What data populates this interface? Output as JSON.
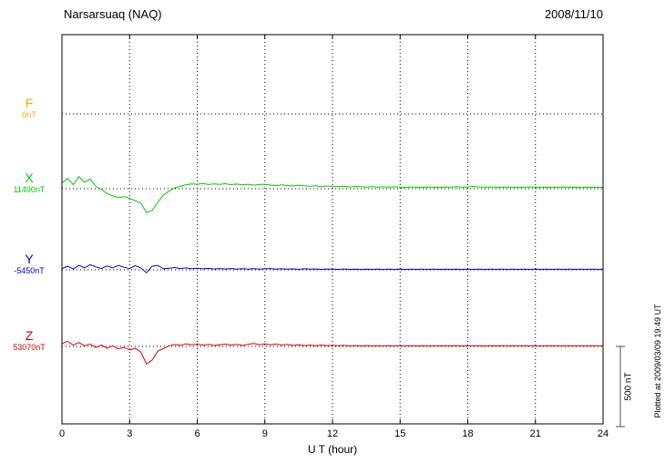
{
  "header": {
    "station_title": "Narsarsuaq (NAQ)",
    "date": "2008/11/10"
  },
  "axes": {
    "x_title": "U T (hour)",
    "x_tick_labels": [
      "0",
      "3",
      "6",
      "9",
      "12",
      "15",
      "18",
      "21",
      "24"
    ],
    "x_tick_step_hours": 3
  },
  "scale_bar": {
    "label": "500 nT",
    "span_nT": 500
  },
  "plotted_note": "Plotted at 2009/03/09 19:49 UT",
  "chart_data": {
    "type": "line",
    "title": "Narsarsuaq (NAQ) magnetogram 2008/11/10",
    "xlabel": "U T (hour)",
    "x_range": [
      0,
      24
    ],
    "x_step_hours": 0.25,
    "grid": "dotted baselines and 3-hour verticals",
    "scale_nT_per_bar": 500,
    "series": [
      {
        "id": "F",
        "label": "F",
        "baseline_label": "0nT",
        "baseline_nT": 0,
        "color": "#FFA500",
        "offsets_nT": []
      },
      {
        "id": "X",
        "label": "X",
        "baseline_label": "11490nT",
        "baseline_nT": 11490,
        "color": "#00CC00",
        "offsets_nT": [
          35,
          65,
          25,
          75,
          40,
          60,
          15,
          -5,
          -30,
          -45,
          -55,
          -50,
          -60,
          -75,
          -90,
          -150,
          -135,
          -85,
          -40,
          -15,
          5,
          15,
          25,
          30,
          28,
          32,
          26,
          30,
          27,
          31,
          25,
          29,
          24,
          28,
          22,
          26,
          28,
          23,
          19,
          24,
          20,
          17,
          22,
          18,
          15,
          19,
          13,
          17,
          15,
          12,
          16,
          11,
          14,
          12,
          10,
          13,
          10,
          12,
          9,
          12,
          10,
          8,
          11,
          9,
          8,
          11,
          9,
          8,
          11,
          9,
          12,
          9,
          11,
          14,
          11,
          9,
          11,
          9,
          8,
          11,
          9,
          8,
          9,
          11,
          9,
          8,
          9,
          8,
          9,
          11,
          8,
          9,
          8,
          9,
          8,
          9,
          8
        ]
      },
      {
        "id": "Y",
        "label": "Y",
        "baseline_label": "-5450nT",
        "baseline_nT": -5450,
        "color": "#0000DD",
        "offsets_nT": [
          8,
          22,
          5,
          28,
          12,
          32,
          18,
          8,
          24,
          12,
          28,
          16,
          8,
          26,
          12,
          -18,
          22,
          28,
          6,
          10,
          14,
          8,
          12,
          6,
          10,
          6,
          9,
          5,
          8,
          5,
          8,
          4,
          7,
          4,
          7,
          4,
          6,
          8,
          4,
          6,
          4,
          6,
          3,
          6,
          4,
          5,
          3,
          5,
          4,
          3,
          5,
          3,
          4,
          3,
          4,
          3,
          4,
          3,
          4,
          3,
          4,
          3,
          4,
          3,
          4,
          3,
          4,
          3,
          4,
          3,
          4,
          3,
          4,
          3,
          4,
          3,
          4,
          3,
          4,
          3,
          4,
          3,
          4,
          3,
          4,
          3,
          4,
          3,
          4,
          3,
          4,
          3,
          4,
          3,
          4,
          3,
          4
        ]
      },
      {
        "id": "Z",
        "label": "Z",
        "baseline_label": "53070nT",
        "baseline_nT": 53070,
        "color": "#DD0000",
        "offsets_nT": [
          18,
          32,
          8,
          24,
          4,
          14,
          -6,
          8,
          -12,
          4,
          -16,
          -6,
          -22,
          -12,
          -35,
          -110,
          -85,
          -30,
          -14,
          4,
          12,
          6,
          16,
          10,
          14,
          8,
          12,
          6,
          10,
          14,
          8,
          12,
          6,
          12,
          18,
          10,
          16,
          10,
          14,
          8,
          12,
          6,
          10,
          5,
          8,
          4,
          8,
          4,
          6,
          4,
          6,
          3,
          5,
          3,
          5,
          3,
          4,
          3,
          4,
          3,
          4,
          3,
          4,
          3,
          4,
          3,
          4,
          3,
          4,
          3,
          4,
          3,
          4,
          3,
          4,
          3,
          4,
          3,
          4,
          3,
          4,
          3,
          4,
          3,
          4,
          3,
          4,
          3,
          4,
          3,
          4,
          3,
          4,
          3,
          4,
          3,
          4
        ]
      }
    ]
  }
}
